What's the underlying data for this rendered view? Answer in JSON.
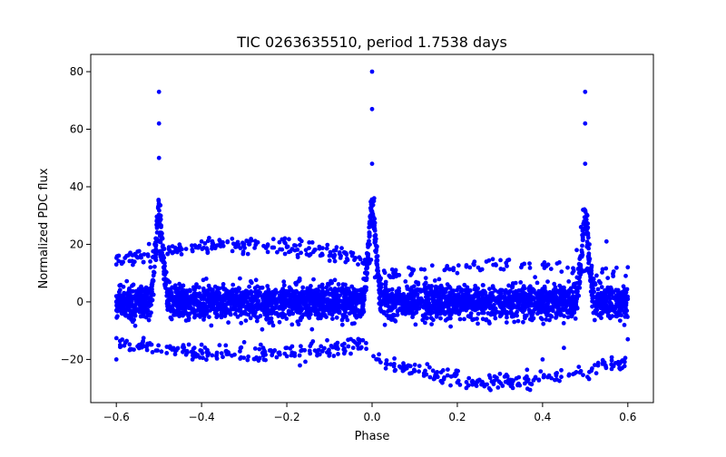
{
  "chart_data": {
    "type": "scatter",
    "title": "TIC 0263635510, period 1.7538 days",
    "xlabel": "Phase",
    "ylabel": "Normalized PDC flux",
    "xlim": [
      -0.66,
      0.66
    ],
    "ylim": [
      -35,
      86
    ],
    "xticks": [
      -0.6,
      -0.4,
      -0.2,
      0.0,
      0.2,
      0.4,
      0.6
    ],
    "xtick_labels": [
      "−0.6",
      "−0.4",
      "−0.2",
      "0.0",
      "0.2",
      "0.4",
      "0.6"
    ],
    "yticks": [
      -20,
      0,
      20,
      40,
      60,
      80
    ],
    "ytick_labels": [
      "−20",
      "0",
      "20",
      "40",
      "60",
      "80"
    ],
    "grid": false,
    "legend": "none",
    "marker_color": "#0000ff",
    "series": [
      {
        "points": [
          [
            -0.6,
            2
          ],
          [
            -0.58,
            -4
          ],
          [
            -0.56,
            6
          ],
          [
            -0.54,
            -3
          ],
          [
            -0.53,
            5
          ],
          [
            -0.52,
            12
          ],
          [
            -0.51,
            20
          ],
          [
            -0.505,
            28
          ],
          [
            -0.5,
            34
          ],
          [
            -0.5,
            50
          ],
          [
            -0.5,
            62
          ],
          [
            -0.5,
            73
          ],
          [
            -0.495,
            26
          ],
          [
            -0.49,
            16
          ],
          [
            -0.48,
            4
          ],
          [
            -0.47,
            -6
          ],
          [
            -0.45,
            3
          ],
          [
            -0.4,
            -2
          ],
          [
            -0.35,
            5
          ],
          [
            -0.3,
            -4
          ],
          [
            -0.25,
            3
          ],
          [
            -0.2,
            -1
          ],
          [
            -0.15,
            4
          ],
          [
            -0.1,
            -3
          ],
          [
            -0.05,
            2
          ],
          [
            -0.02,
            8
          ],
          [
            -0.01,
            20
          ],
          [
            0.0,
            30
          ],
          [
            0.0,
            48
          ],
          [
            0.0,
            67
          ],
          [
            0.0,
            80
          ],
          [
            0.005,
            36
          ],
          [
            0.01,
            18
          ],
          [
            0.02,
            2
          ],
          [
            0.03,
            -8
          ],
          [
            0.06,
            3
          ],
          [
            0.1,
            -2
          ],
          [
            0.15,
            4
          ],
          [
            0.2,
            -3
          ],
          [
            0.25,
            2
          ],
          [
            0.3,
            -1
          ],
          [
            0.35,
            4
          ],
          [
            0.4,
            -2
          ],
          [
            0.45,
            5
          ],
          [
            0.47,
            10
          ],
          [
            0.48,
            18
          ],
          [
            0.49,
            26
          ],
          [
            0.495,
            32
          ],
          [
            0.5,
            48
          ],
          [
            0.5,
            62
          ],
          [
            0.5,
            73
          ],
          [
            0.505,
            30
          ],
          [
            0.51,
            20
          ],
          [
            0.52,
            8
          ],
          [
            0.54,
            -4
          ],
          [
            0.56,
            5
          ],
          [
            0.58,
            -3
          ],
          [
            0.6,
            1
          ],
          [
            -0.6,
            13
          ],
          [
            -0.5,
            21
          ],
          [
            -0.4,
            21
          ],
          [
            -0.3,
            20
          ],
          [
            -0.2,
            19
          ],
          [
            -0.1,
            16
          ],
          [
            -0.6,
            -20
          ],
          [
            -0.4,
            -17
          ],
          [
            -0.3,
            -14
          ],
          [
            -0.2,
            -16
          ],
          [
            -0.05,
            -18
          ],
          [
            0.02,
            -21
          ],
          [
            0.1,
            -24
          ],
          [
            0.2,
            -28
          ],
          [
            0.3,
            -25
          ],
          [
            0.4,
            -20
          ],
          [
            0.45,
            -16
          ],
          [
            0.05,
            10
          ],
          [
            0.2,
            10
          ],
          [
            0.35,
            12
          ],
          [
            0.55,
            21
          ],
          [
            0.6,
            12
          ],
          [
            0.6,
            -13
          ]
        ]
      }
    ]
  }
}
